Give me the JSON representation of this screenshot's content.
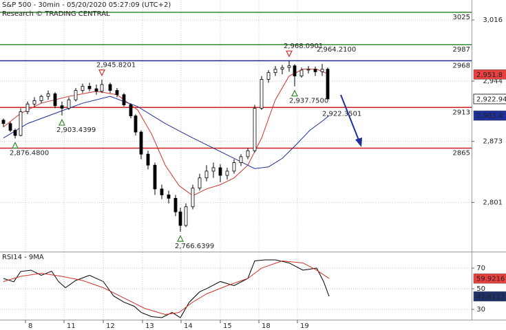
{
  "chart_data": {
    "type": "candlestick",
    "title": "S&P 500 - 30min - 05/20/2020 05:27:09 (UTC+2)",
    "subtitle": "Research © TRADING CENTRAL",
    "xlim": [
      0,
      68.5
    ],
    "xticks": [
      {
        "value": 3.7,
        "label": "8"
      },
      {
        "value": 9.3,
        "label": "11"
      },
      {
        "value": 15,
        "label": "12"
      },
      {
        "value": 20.7,
        "label": "13"
      },
      {
        "value": 26.3,
        "label": "14"
      },
      {
        "value": 32,
        "label": "15"
      },
      {
        "value": 37.6,
        "label": "18"
      },
      {
        "value": 43.2,
        "label": "19"
      }
    ],
    "ylim": [
      2744,
      3039.5
    ],
    "yticks": [
      {
        "value": 3016,
        "label": "3,016"
      },
      {
        "value": 2944,
        "label": "2,944"
      },
      {
        "value": 2873,
        "label": "2,873"
      },
      {
        "value": 2801,
        "label": "2,801"
      }
    ],
    "grid": true,
    "up_color": "#ffffff",
    "down_color": "#000000",
    "candles": {
      "x": [
        0.5,
        1.5,
        2.2,
        3,
        4,
        5,
        6,
        7,
        8,
        9,
        10,
        11,
        12,
        13,
        14,
        14.8,
        16,
        17,
        18,
        19,
        19.7,
        20.5,
        21.5,
        22.5,
        23.5,
        24.5,
        25.5,
        26.2,
        27,
        28,
        29,
        30,
        31,
        32,
        33,
        34,
        35,
        36,
        37,
        38,
        39,
        40,
        41,
        42,
        42.8,
        43.8,
        44.8,
        45.8,
        46.8,
        47.6
      ],
      "open": [
        2898,
        2894,
        2886,
        2880,
        2908,
        2917,
        2921,
        2926,
        2929,
        2915,
        2912,
        2922,
        2933,
        2938,
        2935,
        2932,
        2940,
        2933,
        2928,
        2916,
        2903,
        2884,
        2858,
        2845,
        2817,
        2810,
        2806,
        2790,
        2774,
        2796,
        2818,
        2830,
        2838,
        2842,
        2833,
        2838,
        2848,
        2855,
        2862,
        2912,
        2946,
        2954,
        2958,
        2960,
        2962,
        2950,
        2957,
        2958,
        2955,
        2958
      ],
      "high": [
        2900,
        2896,
        2888,
        2912,
        2920,
        2925,
        2928,
        2933,
        2931,
        2920,
        2925,
        2936,
        2941,
        2942,
        2940,
        2945.8201,
        2942,
        2936,
        2930,
        2918,
        2905,
        2886,
        2862,
        2848,
        2822,
        2815,
        2810,
        2795,
        2800,
        2822,
        2835,
        2845,
        2848,
        2846,
        2842,
        2852,
        2858,
        2865,
        2916,
        2950,
        2957,
        2962,
        2963,
        2968.0901,
        2964,
        2960,
        2962,
        2961,
        2964.21,
        2960
      ],
      "low": [
        2890,
        2884,
        2876.48,
        2879,
        2905,
        2914,
        2918,
        2922,
        2912,
        2903.4399,
        2910,
        2920,
        2930,
        2932,
        2928,
        2930,
        2930,
        2925,
        2914,
        2900,
        2880,
        2852,
        2840,
        2810,
        2805,
        2800,
        2785,
        2766.6399,
        2772,
        2793,
        2815,
        2826,
        2830,
        2825,
        2828,
        2835,
        2844,
        2852,
        2860,
        2910,
        2942,
        2950,
        2952,
        2955,
        2937.75,
        2948,
        2953,
        2950,
        2950,
        2922.3501
      ],
      "close": [
        2894,
        2886,
        2880,
        2908,
        2917,
        2921,
        2926,
        2929,
        2915,
        2912,
        2922,
        2933,
        2938,
        2935,
        2932,
        2940,
        2933,
        2928,
        2916,
        2903,
        2884,
        2858,
        2845,
        2817,
        2810,
        2806,
        2790,
        2774,
        2796,
        2818,
        2830,
        2838,
        2842,
        2833,
        2838,
        2848,
        2855,
        2862,
        2912,
        2946,
        2954,
        2958,
        2960,
        2962,
        2950,
        2957,
        2958,
        2955,
        2958,
        2922.94
      ],
      "last_label": "2,922.94"
    },
    "series": [
      {
        "color": "#d0302a",
        "x": [
          0.5,
          3,
          6,
          10,
          14,
          17,
          20,
          22,
          24,
          26,
          28,
          30,
          32,
          34,
          36,
          38,
          40,
          42,
          44,
          46,
          47.8
        ],
        "values": [
          2890,
          2906,
          2918,
          2926,
          2932,
          2928,
          2910,
          2882,
          2845,
          2821,
          2809,
          2817,
          2822,
          2830,
          2845,
          2877,
          2922,
          2950,
          2958,
          2958,
          2951.8
        ],
        "last_label": "2,951.8"
      },
      {
        "color": "#1f2f9a",
        "x": [
          0.5,
          4,
          8,
          12,
          16,
          20,
          24,
          28,
          32,
          35,
          37,
          39,
          41,
          43,
          45,
          47,
          47.8
        ],
        "values": [
          2877,
          2894,
          2906,
          2918,
          2926,
          2914,
          2894,
          2877,
          2861,
          2849,
          2841,
          2843,
          2853,
          2869,
          2886,
          2898,
          2903.4
        ],
        "last_label": "2,903.4"
      }
    ],
    "levels": [
      {
        "value": 3025,
        "color": "#2e8b2e"
      },
      {
        "value": 2987,
        "color": "#2e8b2e"
      },
      {
        "value": 2968,
        "color": "#1f2f9a"
      },
      {
        "value": 2913,
        "color": "#cc1f1f"
      },
      {
        "value": 2865,
        "color": "#cc1f1f"
      }
    ],
    "annotations": [
      {
        "label": "2,945.8201",
        "value": 2945.8201,
        "x": 14.8,
        "marker": "down",
        "position": "above"
      },
      {
        "label": "2,968.0901",
        "value": 2968.0901,
        "x": 42,
        "marker": "down",
        "position": "above"
      },
      {
        "label": "2,964.2100",
        "value": 2964.21,
        "x": 46.8,
        "marker": "none",
        "position": "above"
      },
      {
        "label": "2,937.7500",
        "value": 2937.75,
        "x": 42.8,
        "marker": "up",
        "position": "below"
      },
      {
        "label": "2,922.3501",
        "value": 2922.3501,
        "x": 47.6,
        "marker": "none",
        "position": "below"
      },
      {
        "label": "2,903.4399",
        "value": 2903.4399,
        "x": 9,
        "marker": "up",
        "position": "below"
      },
      {
        "label": "2,876.4800",
        "value": 2876.48,
        "x": 2.2,
        "marker": "up",
        "position": "below"
      },
      {
        "label": "2,766.6399",
        "value": 2766.6399,
        "x": 26.2,
        "marker": "up",
        "position": "below"
      }
    ],
    "rsi": {
      "title": "RSI14 - 9MA",
      "ylim": [
        20,
        85.3
      ],
      "yticks": [
        70,
        50,
        30
      ],
      "series": [
        {
          "color": "#000000",
          "x": [
            0.5,
            2,
            3,
            4.5,
            6,
            7.5,
            8.5,
            9.5,
            11,
            13,
            15,
            16.5,
            18,
            19.5,
            20.5,
            22,
            23.5,
            25,
            26.2,
            27.5,
            29,
            30,
            32,
            34,
            36,
            37,
            38.5,
            40,
            42,
            44,
            46,
            47,
            47.8
          ],
          "values": [
            60,
            56.7,
            66.7,
            68,
            63,
            67,
            57,
            51,
            58,
            63,
            57,
            43,
            37,
            33,
            27,
            23,
            22,
            27,
            22,
            37,
            47,
            50,
            57,
            53,
            60,
            77,
            78,
            78,
            75,
            68,
            70,
            57,
            42.6123
          ],
          "last_label": "42.6123"
        },
        {
          "color": "#d0302a",
          "x": [
            0.5,
            3,
            6,
            9,
            12,
            15,
            18,
            21,
            24,
            26,
            28,
            30,
            33,
            36,
            38,
            41,
            44,
            46,
            47.8
          ],
          "values": [
            57,
            62,
            65,
            62,
            58,
            51,
            41,
            31,
            25,
            27,
            37,
            45,
            53,
            60,
            70,
            77,
            75,
            68,
            59.9216
          ],
          "last_label": "59.9216"
        }
      ]
    }
  }
}
